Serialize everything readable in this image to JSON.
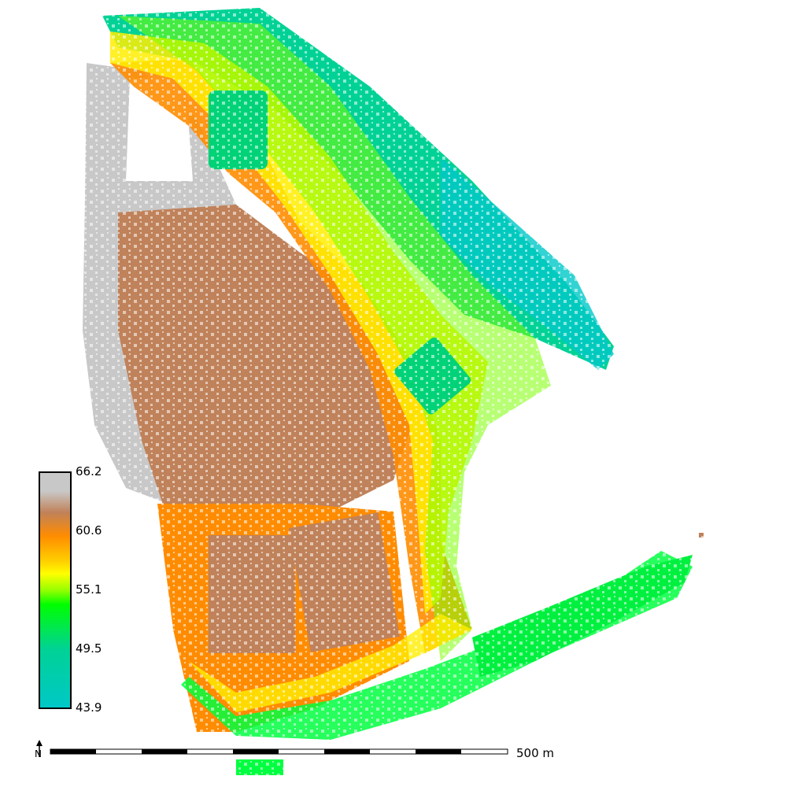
{
  "legend": {
    "colors": {
      "top": "#c8c8c8",
      "upper": "#c0825a",
      "orange": "#ff8c00",
      "yellow": "#ffff00",
      "green": "#00ff00",
      "teal": "#00d296",
      "bottom": "#00c8c8"
    },
    "ticks": [
      "66.2",
      "60.6",
      "55.1",
      "49.5",
      "43.9"
    ]
  },
  "scalebar": {
    "label": "500 m",
    "north_label": "N"
  }
}
